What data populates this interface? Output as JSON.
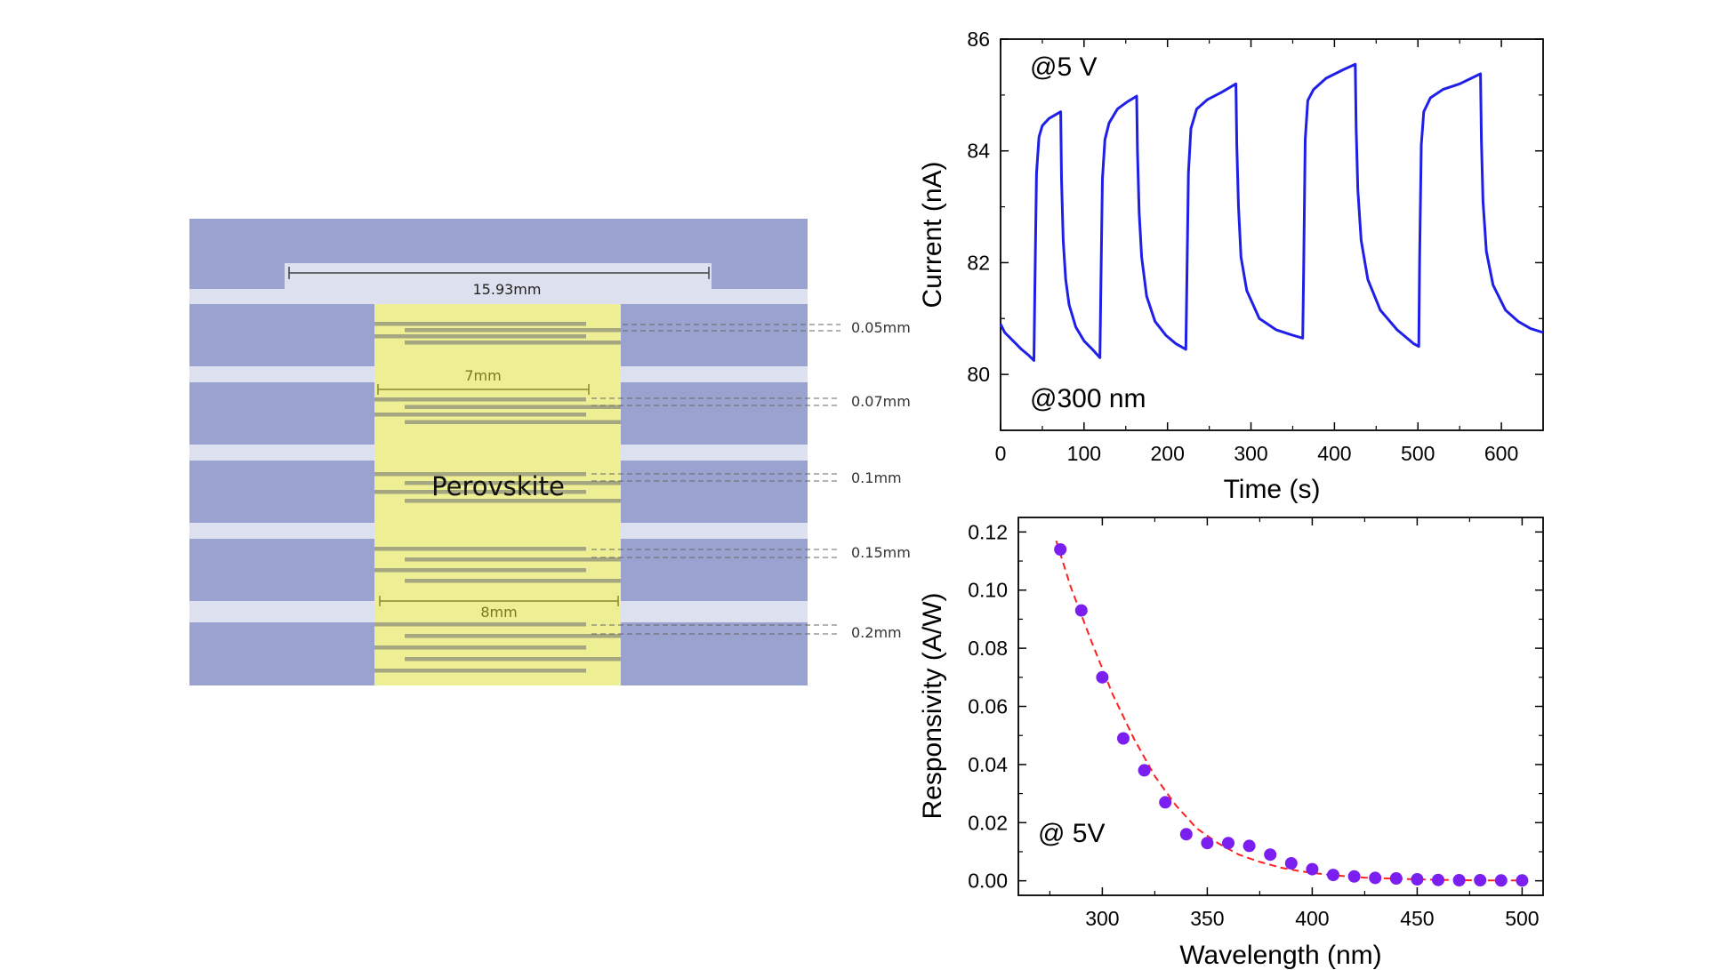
{
  "colors": {
    "electrode": "#9aa3cf",
    "substrate": "#dde0ee",
    "perovskite": "#eeee95",
    "finger": "#a4a77f",
    "dim_line": "#444444",
    "yellow_dim": "#8c8a2a",
    "current_line": "#1f1fe8",
    "resp_points": "#7a1ff0",
    "fit_line": "#ff2020"
  },
  "schematic": {
    "total_width_label": "15.93mm",
    "inner_width_label": "7mm",
    "outer_width_label": "8mm",
    "material_label": "Perovskite",
    "gaps": [
      "0.05mm",
      "0.07mm",
      "0.1mm",
      "0.15mm",
      "0.2mm"
    ]
  },
  "chart_data": [
    {
      "type": "line",
      "title": "",
      "xlabel": "Time (s)",
      "ylabel": "Current (nA)",
      "xlim": [
        0,
        650
      ],
      "ylim": [
        79,
        86
      ],
      "xticks": [
        0,
        100,
        200,
        300,
        400,
        500,
        600
      ],
      "yticks": [
        80,
        82,
        84,
        86
      ],
      "annotations": [
        "@5 V",
        "@300 nm"
      ],
      "series": [
        {
          "x": [
            0,
            5,
            15,
            25,
            33,
            40,
            41,
            43,
            46,
            50,
            58,
            66,
            72,
            73,
            75,
            78,
            82,
            90,
            100,
            110,
            119,
            120,
            122,
            125,
            130,
            140,
            152,
            163,
            164,
            166,
            169,
            175,
            185,
            198,
            210,
            222,
            223,
            225,
            228,
            235,
            248,
            265,
            282,
            283,
            285,
            288,
            295,
            310,
            330,
            350,
            362,
            363,
            365,
            368,
            375,
            390,
            410,
            425,
            426,
            428,
            432,
            440,
            455,
            475,
            495,
            501,
            502,
            504,
            507,
            515,
            530,
            550,
            575,
            576,
            578,
            582,
            590,
            605,
            620,
            635,
            650
          ],
          "y": [
            80.9,
            80.75,
            80.6,
            80.45,
            80.35,
            80.25,
            81.5,
            83.6,
            84.25,
            84.45,
            84.58,
            84.65,
            84.7,
            83.5,
            82.4,
            81.7,
            81.25,
            80.85,
            80.6,
            80.45,
            80.3,
            81.4,
            83.5,
            84.2,
            84.5,
            84.75,
            84.88,
            84.98,
            84.0,
            82.9,
            82.1,
            81.4,
            80.95,
            80.7,
            80.55,
            80.45,
            81.5,
            83.6,
            84.4,
            84.75,
            84.92,
            85.05,
            85.2,
            84.1,
            83.0,
            82.1,
            81.5,
            81.0,
            80.8,
            80.7,
            80.65,
            81.8,
            84.2,
            84.9,
            85.1,
            85.3,
            85.45,
            85.55,
            84.4,
            83.3,
            82.4,
            81.7,
            81.15,
            80.8,
            80.55,
            80.5,
            82.0,
            84.1,
            84.7,
            84.95,
            85.1,
            85.2,
            85.38,
            84.2,
            83.1,
            82.2,
            81.6,
            81.15,
            80.95,
            80.82,
            80.75
          ]
        }
      ]
    },
    {
      "type": "scatter",
      "title": "",
      "xlabel": "Wavelength (nm)",
      "ylabel": "Responsivity (A/W)",
      "xlim": [
        260,
        510
      ],
      "ylim": [
        -0.005,
        0.125
      ],
      "xticks": [
        300,
        350,
        400,
        450,
        500
      ],
      "yticks": [
        0.0,
        0.02,
        0.04,
        0.06,
        0.08,
        0.1,
        0.12
      ],
      "ytick_labels": [
        "0.00",
        "0.02",
        "0.04",
        "0.06",
        "0.08",
        "0.10",
        "0.12"
      ],
      "annotations": [
        "@ 5V"
      ],
      "series": [
        {
          "x": [
            280,
            290,
            300,
            310,
            320,
            330,
            340,
            350,
            360,
            370,
            380,
            390,
            400,
            410,
            420,
            430,
            440,
            450,
            460,
            470,
            480,
            490,
            500
          ],
          "y": [
            0.114,
            0.093,
            0.07,
            0.049,
            0.038,
            0.027,
            0.016,
            0.013,
            0.013,
            0.012,
            0.009,
            0.006,
            0.004,
            0.002,
            0.0015,
            0.001,
            0.0008,
            0.0005,
            0.0003,
            0.0002,
            0.0002,
            0.0001,
            0.0001
          ]
        }
      ],
      "fit": {
        "x": [
          278,
          285,
          295,
          305,
          315,
          325,
          335,
          345,
          355,
          365,
          375,
          385,
          395,
          405,
          415,
          425,
          440,
          455,
          470,
          485,
          500
        ],
        "y": [
          0.117,
          0.101,
          0.082,
          0.064,
          0.049,
          0.036,
          0.026,
          0.018,
          0.013,
          0.009,
          0.0065,
          0.0045,
          0.0032,
          0.0023,
          0.0016,
          0.0011,
          0.0007,
          0.0004,
          0.0002,
          0.0001,
          0.0001
        ]
      }
    }
  ]
}
